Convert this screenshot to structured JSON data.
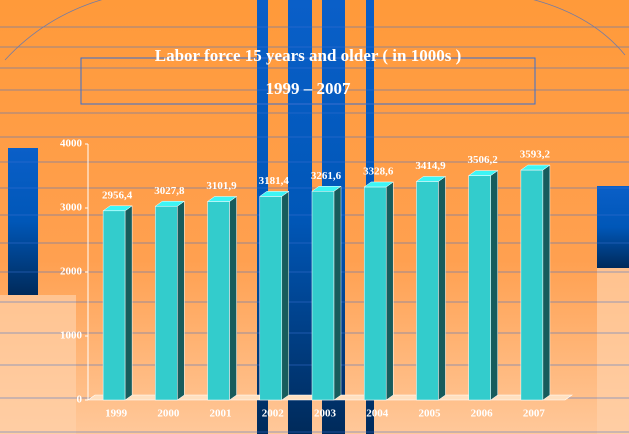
{
  "chart_data": {
    "type": "bar3d",
    "title": "Labor force 15 years and older ( in 1000s )",
    "subtitle": "1999 – 2007",
    "categories": [
      "1999",
      "2000",
      "2001",
      "2002",
      "2003",
      "2004",
      "2005",
      "2006",
      "2007"
    ],
    "values": [
      2956.4,
      3027.8,
      3101.9,
      3181.4,
      3261.6,
      3328.6,
      3414.9,
      3506.2,
      3593.2
    ],
    "value_labels": [
      "2956,4",
      "3027,8",
      "3101,9",
      "3181,4",
      "3261,6",
      "3328,6",
      "3414,9",
      "3506,2",
      "3593,2"
    ],
    "color": "#33cccc",
    "ylim": [
      0,
      4000
    ],
    "yticks": [
      0,
      1000,
      2000,
      3000,
      4000
    ]
  }
}
